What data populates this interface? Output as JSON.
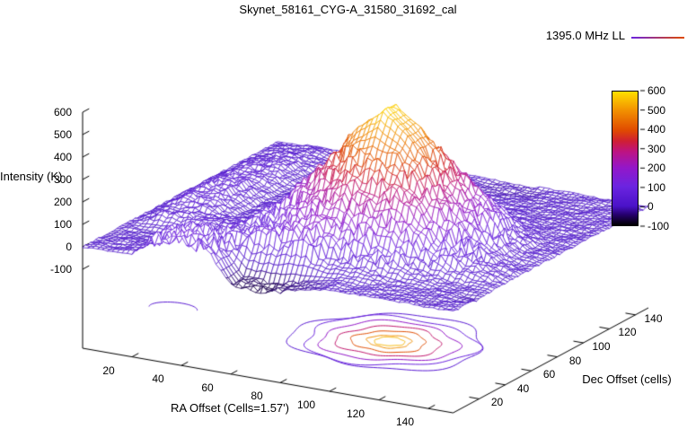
{
  "chart_data": {
    "type": "surface",
    "title": "Skynet_58161_CYG-A_31580_31692_cal",
    "legend_label": "1395.0 MHz LL",
    "xlabel": "RA Offset (Cells=1.57')",
    "ylabel": "Dec Offset (cells)",
    "zlabel": "Intensity (K)",
    "xrange": [
      0,
      150
    ],
    "yrange": [
      0,
      150
    ],
    "zrange": [
      -100,
      600
    ],
    "xticks": [
      20,
      40,
      60,
      80,
      100,
      120,
      140
    ],
    "yticks": [
      20,
      40,
      60,
      80,
      100,
      120,
      140
    ],
    "zticks": [
      -100,
      0,
      100,
      200,
      300,
      400,
      500,
      600
    ],
    "colorbar_ticks": [
      600,
      500,
      400,
      300,
      200,
      100,
      0,
      -100
    ],
    "palette_stops": [
      [
        0.0,
        "#000000"
      ],
      [
        0.08,
        "#26006e"
      ],
      [
        0.143,
        "#4a12c8"
      ],
      [
        0.29,
        "#6b24e0"
      ],
      [
        0.43,
        "#9317c9"
      ],
      [
        0.55,
        "#bd1382"
      ],
      [
        0.63,
        "#cf1f33"
      ],
      [
        0.71,
        "#e04a00"
      ],
      [
        0.86,
        "#f29100"
      ],
      [
        1.0,
        "#ffdf00"
      ]
    ],
    "grid_x": [
      0,
      10,
      20,
      30,
      40,
      50,
      60,
      70,
      80,
      90,
      100,
      110,
      120,
      130,
      140,
      150
    ],
    "grid_y": [
      0,
      10,
      20,
      30,
      40,
      50,
      60,
      70,
      80,
      90,
      100,
      110,
      120,
      130,
      140,
      150
    ],
    "z_grid": [
      [
        0,
        0,
        10,
        95,
        105,
        90,
        -55,
        -60,
        -45,
        -20,
        0,
        0,
        0,
        0,
        0,
        0
      ],
      [
        0,
        5,
        15,
        95,
        110,
        85,
        -50,
        -55,
        -40,
        -13,
        6,
        3,
        1,
        0,
        0,
        0
      ],
      [
        0,
        0,
        5,
        90,
        92,
        92,
        100,
        116,
        136,
        54,
        46,
        26,
        10,
        2,
        0,
        -10
      ],
      [
        0,
        0,
        0,
        45,
        47,
        57,
        91,
        148,
        197,
        171,
        152,
        103,
        46,
        12,
        2,
        0
      ],
      [
        0,
        45,
        48,
        46,
        46,
        78,
        117,
        209,
        272,
        295,
        272,
        209,
        117,
        73,
        41,
        0
      ],
      [
        0,
        30,
        32,
        31,
        34,
        95,
        190,
        295,
        389,
        435,
        389,
        295,
        190,
        100,
        39,
        1
      ],
      [
        0,
        58,
        60,
        2,
        21,
        103,
        230,
        350,
        500,
        587,
        500,
        350,
        230,
        103,
        21,
        2
      ],
      [
        0,
        60,
        57,
        2,
        21,
        103,
        230,
        350,
        500,
        587,
        500,
        350,
        230,
        103,
        21,
        2
      ],
      [
        0,
        55,
        57,
        1,
        14,
        75,
        190,
        295,
        389,
        435,
        389,
        295,
        190,
        75,
        14,
        1
      ],
      [
        0,
        52,
        54,
        0,
        6,
        38,
        117,
        209,
        272,
        295,
        272,
        209,
        117,
        38,
        6,
        0
      ],
      [
        0,
        46,
        49,
        0,
        2,
        12,
        46,
        103,
        152,
        171,
        152,
        103,
        46,
        12,
        2,
        0
      ],
      [
        0,
        42,
        45,
        0,
        0,
        2,
        10,
        26,
        46,
        54,
        46,
        26,
        10,
        2,
        0,
        0
      ],
      [
        0,
        36,
        39,
        0,
        0,
        0,
        1,
        3,
        6,
        7,
        6,
        3,
        1,
        0,
        0,
        0
      ],
      [
        0,
        28,
        30,
        0,
        0,
        0,
        0,
        0,
        0,
        0,
        0,
        0,
        0,
        0,
        0,
        0
      ],
      [
        0,
        16,
        19,
        0,
        0,
        0,
        0,
        0,
        0,
        -8,
        -12,
        -6,
        0,
        0,
        0,
        0
      ],
      [
        0,
        5,
        8,
        0,
        0,
        0,
        0,
        0,
        0,
        -4,
        -6,
        0,
        0,
        0,
        0,
        0
      ]
    ],
    "peak": {
      "x": 90,
      "y": 65,
      "z": 610
    },
    "contours": [
      {
        "level": 50,
        "radius": 35
      },
      {
        "level": 100,
        "radius": 31
      },
      {
        "level": 200,
        "radius": 25
      },
      {
        "level": 300,
        "radius": 19
      },
      {
        "level": 400,
        "radius": 13.5
      },
      {
        "level": 500,
        "radius": 8
      },
      {
        "level": 550,
        "radius": 5.5
      }
    ],
    "extra_contour_arc": {
      "center": [
        5,
        60
      ],
      "radius": 9,
      "level": 50
    }
  }
}
